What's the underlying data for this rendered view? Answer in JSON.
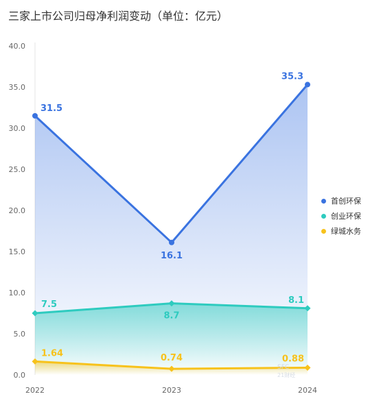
{
  "title": "三家上市公司归母净利润变动（单位：亿元）",
  "watermark": {
    "main": "SFC",
    "sub": "21财经"
  },
  "chart_data": {
    "type": "line",
    "title": "三家上市公司归母净利润变动（单位：亿元）",
    "x": [
      "2022",
      "2023",
      "2024"
    ],
    "ylim": [
      0,
      40
    ],
    "yticks": [
      "0.0",
      "5.0",
      "10.0",
      "15.0",
      "20.0",
      "25.0",
      "30.0",
      "35.0",
      "40.0"
    ],
    "grid": false,
    "legend_position": "right",
    "series": [
      {
        "name": "首创环保",
        "values": [
          31.5,
          16.1,
          35.3
        ],
        "labels": [
          "31.5",
          "16.1",
          "35.3"
        ],
        "color": "#3a73e0",
        "marker": "circle"
      },
      {
        "name": "创业环保",
        "values": [
          7.5,
          8.7,
          8.1
        ],
        "labels": [
          "7.5",
          "8.7",
          "8.1"
        ],
        "color": "#2ecbbf",
        "marker": "diamond"
      },
      {
        "name": "绿城水务",
        "values": [
          1.64,
          0.74,
          0.88
        ],
        "labels": [
          "1.64",
          "0.74",
          "0.88"
        ],
        "color": "#f7c21c",
        "marker": "diamond"
      }
    ]
  }
}
